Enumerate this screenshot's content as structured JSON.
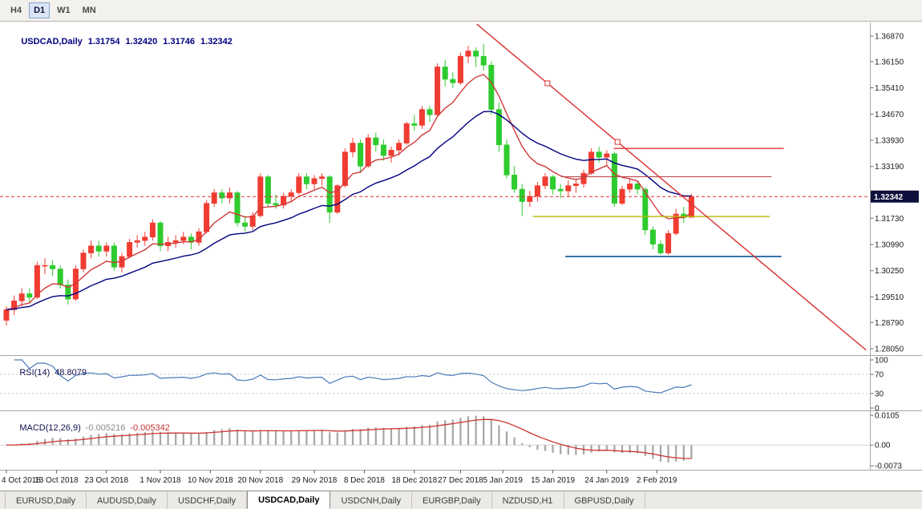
{
  "toolbar": {
    "timeframes": [
      {
        "label": "H4",
        "active": false
      },
      {
        "label": "D1",
        "active": true
      },
      {
        "label": "W1",
        "active": false
      },
      {
        "label": "MN",
        "active": false
      }
    ]
  },
  "chart_header": {
    "symbol": "USDCAD,Daily",
    "open": "1.31754",
    "high": "1.32420",
    "low": "1.31746",
    "close": "1.32342"
  },
  "price_axis": {
    "ticks": [
      "1.36870",
      "1.36150",
      "1.35410",
      "1.34670",
      "1.33930",
      "1.33190",
      "1.31730",
      "1.30990",
      "1.30250",
      "1.29510",
      "1.28790",
      "1.28050"
    ],
    "badge": "1.32342"
  },
  "time_axis": {
    "labels": [
      {
        "text": "4 Oct 2018",
        "i": 0
      },
      {
        "text": "13 Oct 2018",
        "i": 6.5
      },
      {
        "text": "23 Oct 2018",
        "i": 13
      },
      {
        "text": "1 Nov 2018",
        "i": 20
      },
      {
        "text": "10 Nov 2018",
        "i": 26.5
      },
      {
        "text": "20 Nov 2018",
        "i": 33
      },
      {
        "text": "29 Nov 2018",
        "i": 40
      },
      {
        "text": "8 Dec 2018",
        "i": 46.5
      },
      {
        "text": "18 Dec 2018",
        "i": 53
      },
      {
        "text": "27 Dec 2018",
        "i": 59
      },
      {
        "text": "5 Jan 2019",
        "i": 64.5
      },
      {
        "text": "15 Jan 2019",
        "i": 71
      },
      {
        "text": "24 Jan 2019",
        "i": 78
      },
      {
        "text": "2 Feb 2019",
        "i": 84.5
      }
    ]
  },
  "rsi": {
    "label": "RSI(14)",
    "value": "48.8079",
    "period": 14,
    "color": "#4a7aba",
    "levels": [
      {
        "text": "100",
        "v": 100,
        "dashed": false
      },
      {
        "text": "70",
        "v": 70,
        "dashed": true
      },
      {
        "text": "30",
        "v": 30,
        "dashed": true
      },
      {
        "text": "0",
        "v": 0,
        "dashed": false
      }
    ]
  },
  "macd": {
    "label": "MACD(12,26,9)",
    "main_value": "-0.005216",
    "signal_value": "-0.005342",
    "fast": 12,
    "slow": 26,
    "signal": 9,
    "bar_color": "#a6a6a6",
    "signal_color": "#cf3434",
    "ticks": [
      {
        "text": "0.0105",
        "v": 0.0105
      },
      {
        "text": "0.00",
        "v": 0
      },
      {
        "text": "-0.0073",
        "v": -0.0073
      }
    ]
  },
  "chart_data": {
    "type": "candlestick",
    "symbol": "USDCAD",
    "timeframe": "Daily",
    "title": "USDCAD,Daily 1.31754 1.32420 1.31746 1.32342",
    "ylim": [
      1.2805,
      1.3687
    ],
    "colors": {
      "bull": "#f03c32",
      "bear": "#2ecb2e"
    },
    "ma": [
      {
        "type": "ema",
        "period": 8,
        "color": "#d03a3a",
        "name": "ma-fast-red"
      },
      {
        "type": "ema",
        "period": 21,
        "color": "#000080",
        "name": "ma-slow-navy"
      }
    ],
    "candles": [
      [
        1.2885,
        1.2925,
        1.287,
        1.2915
      ],
      [
        1.2915,
        1.2955,
        1.29,
        1.294
      ],
      [
        1.294,
        1.2975,
        1.2925,
        1.296
      ],
      [
        1.296,
        1.2975,
        1.2935,
        1.295
      ],
      [
        1.295,
        1.305,
        1.2945,
        1.304
      ],
      [
        1.304,
        1.306,
        1.3015,
        1.304
      ],
      [
        1.304,
        1.3055,
        1.301,
        1.303
      ],
      [
        1.303,
        1.304,
        1.2975,
        1.2985
      ],
      [
        1.2985,
        1.3,
        1.293,
        1.2945
      ],
      [
        1.2945,
        1.304,
        1.294,
        1.303
      ],
      [
        1.303,
        1.3085,
        1.302,
        1.3075
      ],
      [
        1.3075,
        1.311,
        1.306,
        1.3095
      ],
      [
        1.3095,
        1.311,
        1.3065,
        1.308
      ],
      [
        1.308,
        1.3105,
        1.3065,
        1.3095
      ],
      [
        1.3095,
        1.3105,
        1.3025,
        1.3035
      ],
      [
        1.3035,
        1.3075,
        1.302,
        1.3065
      ],
      [
        1.3065,
        1.3115,
        1.306,
        1.3105
      ],
      [
        1.3105,
        1.3125,
        1.309,
        1.311
      ],
      [
        1.311,
        1.3135,
        1.3095,
        1.312
      ],
      [
        1.312,
        1.317,
        1.311,
        1.316
      ],
      [
        1.316,
        1.3165,
        1.308,
        1.3095
      ],
      [
        1.3095,
        1.312,
        1.308,
        1.3105
      ],
      [
        1.3105,
        1.3125,
        1.309,
        1.311
      ],
      [
        1.311,
        1.3135,
        1.31,
        1.312
      ],
      [
        1.312,
        1.313,
        1.3085,
        1.3105
      ],
      [
        1.3105,
        1.3145,
        1.3095,
        1.3135
      ],
      [
        1.3135,
        1.3225,
        1.313,
        1.3215
      ],
      [
        1.3215,
        1.3255,
        1.3205,
        1.3245
      ],
      [
        1.3245,
        1.3255,
        1.3215,
        1.323
      ],
      [
        1.323,
        1.326,
        1.3215,
        1.3245
      ],
      [
        1.3245,
        1.325,
        1.315,
        1.316
      ],
      [
        1.316,
        1.318,
        1.3135,
        1.315
      ],
      [
        1.315,
        1.319,
        1.314,
        1.318
      ],
      [
        1.318,
        1.33,
        1.3175,
        1.329
      ],
      [
        1.329,
        1.3295,
        1.3205,
        1.3215
      ],
      [
        1.3215,
        1.324,
        1.32,
        1.321
      ],
      [
        1.321,
        1.3245,
        1.32,
        1.3235
      ],
      [
        1.3235,
        1.3255,
        1.322,
        1.3245
      ],
      [
        1.3245,
        1.33,
        1.324,
        1.329
      ],
      [
        1.329,
        1.33,
        1.3255,
        1.327
      ],
      [
        1.327,
        1.3295,
        1.3255,
        1.3285
      ],
      [
        1.3285,
        1.33,
        1.3265,
        1.329
      ],
      [
        1.329,
        1.3295,
        1.316,
        1.319
      ],
      [
        1.319,
        1.327,
        1.3185,
        1.3265
      ],
      [
        1.3265,
        1.337,
        1.326,
        1.336
      ],
      [
        1.336,
        1.34,
        1.3345,
        1.3385
      ],
      [
        1.3385,
        1.3395,
        1.33,
        1.332
      ],
      [
        1.332,
        1.341,
        1.3315,
        1.34
      ],
      [
        1.34,
        1.3415,
        1.336,
        1.338
      ],
      [
        1.338,
        1.3395,
        1.3335,
        1.335
      ],
      [
        1.335,
        1.3375,
        1.333,
        1.3365
      ],
      [
        1.3365,
        1.3395,
        1.335,
        1.3385
      ],
      [
        1.3385,
        1.3445,
        1.338,
        1.344
      ],
      [
        1.344,
        1.3465,
        1.342,
        1.3435
      ],
      [
        1.3435,
        1.349,
        1.3425,
        1.348
      ],
      [
        1.348,
        1.349,
        1.3445,
        1.3465
      ],
      [
        1.3465,
        1.361,
        1.346,
        1.36
      ],
      [
        1.36,
        1.362,
        1.3545,
        1.3565
      ],
      [
        1.3565,
        1.3585,
        1.354,
        1.3555
      ],
      [
        1.3555,
        1.364,
        1.355,
        1.363
      ],
      [
        1.363,
        1.366,
        1.361,
        1.3645
      ],
      [
        1.3645,
        1.3655,
        1.36,
        1.363
      ],
      [
        1.363,
        1.3665,
        1.359,
        1.3605
      ],
      [
        1.3605,
        1.3615,
        1.3465,
        1.348
      ],
      [
        1.348,
        1.35,
        1.336,
        1.338
      ],
      [
        1.338,
        1.3395,
        1.3285,
        1.3295
      ],
      [
        1.3295,
        1.332,
        1.3245,
        1.3255
      ],
      [
        1.3255,
        1.327,
        1.318,
        1.322
      ],
      [
        1.322,
        1.325,
        1.3205,
        1.3235
      ],
      [
        1.3235,
        1.3275,
        1.322,
        1.3265
      ],
      [
        1.3265,
        1.33,
        1.3255,
        1.329
      ],
      [
        1.329,
        1.3295,
        1.324,
        1.3255
      ],
      [
        1.3255,
        1.327,
        1.323,
        1.325
      ],
      [
        1.325,
        1.328,
        1.3235,
        1.3265
      ],
      [
        1.3265,
        1.3285,
        1.3245,
        1.327
      ],
      [
        1.327,
        1.331,
        1.326,
        1.33
      ],
      [
        1.33,
        1.337,
        1.3295,
        1.336
      ],
      [
        1.336,
        1.3375,
        1.333,
        1.3345
      ],
      [
        1.3345,
        1.3365,
        1.332,
        1.3355
      ],
      [
        1.3355,
        1.336,
        1.3205,
        1.3215
      ],
      [
        1.3215,
        1.3265,
        1.321,
        1.3255
      ],
      [
        1.3255,
        1.3285,
        1.3245,
        1.327
      ],
      [
        1.327,
        1.328,
        1.324,
        1.3255
      ],
      [
        1.3255,
        1.326,
        1.3125,
        1.314
      ],
      [
        1.314,
        1.315,
        1.3085,
        1.31
      ],
      [
        1.31,
        1.311,
        1.307,
        1.3075
      ],
      [
        1.3075,
        1.314,
        1.307,
        1.313
      ],
      [
        1.313,
        1.32,
        1.3125,
        1.3185
      ],
      [
        1.3185,
        1.3205,
        1.316,
        1.3175
      ],
      [
        1.31754,
        1.3242,
        1.31746,
        1.32342
      ]
    ],
    "annotations": {
      "trendline": {
        "i1": 61.1,
        "p1": 1.3721,
        "i2": 111.7,
        "p2": 1.2801,
        "color": "#d93030",
        "handles": [
          70.3,
          79.4
        ]
      },
      "hlines": [
        {
          "price": 1.337,
          "i1": 78.9,
          "i2": 101.0,
          "color": "#e03131",
          "width": 1.4
        },
        {
          "price": 1.329,
          "i1": 72.1,
          "i2": 99.4,
          "color": "#b84040",
          "width": 1
        },
        {
          "price": 1.3178,
          "i1": 68.4,
          "i2": 99.2,
          "color": "#b9b400",
          "width": 1.4
        },
        {
          "price": 1.3065,
          "i1": 72.6,
          "i2": 100.7,
          "color": "#3a74a8",
          "width": 2
        }
      ],
      "bid_line": {
        "price": 1.32342,
        "color": "#e03131"
      }
    }
  },
  "bottom_tabs": [
    {
      "label": "EURUSD,Daily",
      "active": false
    },
    {
      "label": "AUDUSD,Daily",
      "active": false
    },
    {
      "label": "USDCHF,Daily",
      "active": false
    },
    {
      "label": "USDCAD,Daily",
      "active": true
    },
    {
      "label": "USDCNH,Daily",
      "active": false
    },
    {
      "label": "EURGBP,Daily",
      "active": false
    },
    {
      "label": "NZDUSD,H1",
      "active": false
    },
    {
      "label": "GBPUSD,Daily",
      "active": false
    }
  ]
}
